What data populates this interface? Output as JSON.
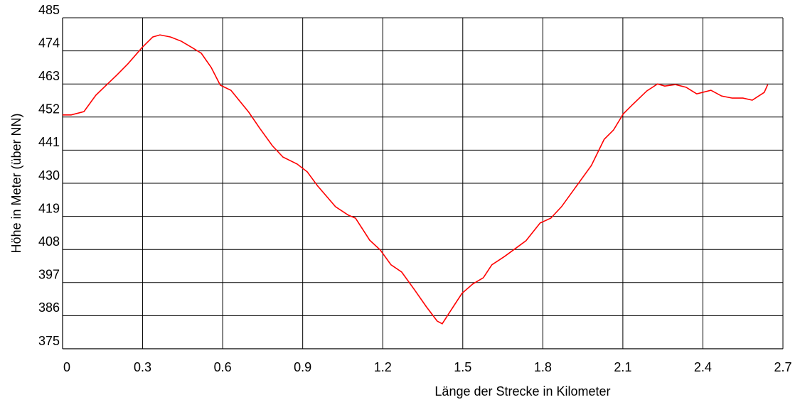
{
  "chart_data": {
    "type": "line",
    "x_label": "Länge der Strecke in Kilometer",
    "y_label": "Höhe in Meter (über NN)",
    "x": [
      0,
      0.032,
      0.08,
      0.125,
      0.205,
      0.245,
      0.298,
      0.338,
      0.365,
      0.405,
      0.445,
      0.485,
      0.52,
      0.557,
      0.591,
      0.631,
      0.698,
      0.738,
      0.786,
      0.826,
      0.879,
      0.917,
      0.956,
      1.023,
      1.071,
      1.098,
      1.151,
      1.191,
      1.231,
      1.271,
      1.319,
      1.364,
      1.404,
      1.423,
      1.455,
      1.497,
      1.537,
      1.577,
      1.609,
      1.657,
      1.697,
      1.737,
      1.79,
      1.83,
      1.87,
      1.924,
      1.982,
      2.03,
      2.065,
      2.102,
      2.137,
      2.19,
      2.23,
      2.257,
      2.297,
      2.337,
      2.377,
      2.43,
      2.47,
      2.51,
      2.55,
      2.585,
      2.63,
      2.643
    ],
    "series": [
      {
        "name": "Höhe",
        "color": "#ff0000",
        "values": [
          452.7,
          452.7,
          453.8,
          459.3,
          466.1,
          469.7,
          475.1,
          478.6,
          479.3,
          478.6,
          477.2,
          475.1,
          473.2,
          468.5,
          462.6,
          460.9,
          453.6,
          448.4,
          442.5,
          438.7,
          436.4,
          433.8,
          429.1,
          422.2,
          419.4,
          418.4,
          411.1,
          407.8,
          402.9,
          400.5,
          394.6,
          388.9,
          384.2,
          383.3,
          387.7,
          393.4,
          396.5,
          398.6,
          402.9,
          405.7,
          408.3,
          410.9,
          416.8,
          418.4,
          422.2,
          428.8,
          435.9,
          444.6,
          447.7,
          453.1,
          456.2,
          460.7,
          463.0,
          462.3,
          462.8,
          461.9,
          459.7,
          460.9,
          459.0,
          458.3,
          458.3,
          457.6,
          460.2,
          462.8
        ]
      }
    ],
    "xlim": [
      0,
      2.7
    ],
    "xticks": [
      0,
      0.3,
      0.6,
      0.9,
      1.2,
      1.5,
      1.8,
      2.1,
      2.4,
      2.7
    ],
    "ylim": [
      375,
      485
    ],
    "yticks": [
      375,
      386,
      397,
      408,
      419,
      430,
      441,
      452,
      463,
      474,
      485
    ],
    "grid": true
  }
}
